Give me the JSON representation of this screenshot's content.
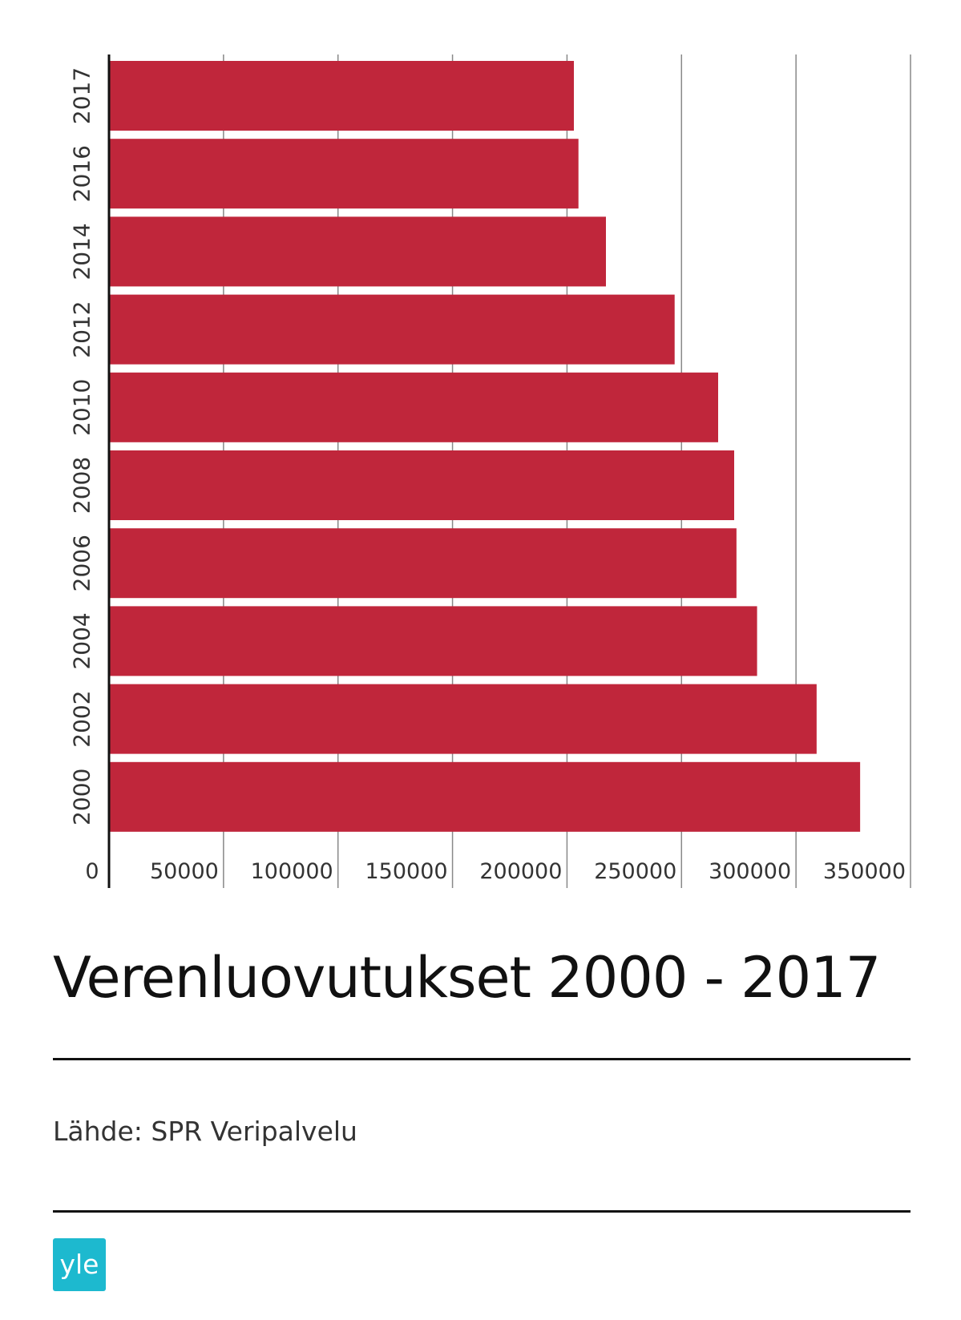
{
  "chart_data": {
    "type": "bar",
    "orientation": "horizontal",
    "title": "Verenluovutukset 2000 - 2017",
    "categories": [
      "2017",
      "2016",
      "2014",
      "2012",
      "2010",
      "2008",
      "2006",
      "2004",
      "2002",
      "2000"
    ],
    "values": [
      203000,
      205000,
      217000,
      247000,
      266000,
      273000,
      274000,
      283000,
      309000,
      328000
    ],
    "xlim": [
      0,
      350000
    ],
    "x_ticks": [
      "0",
      "50000",
      "100000",
      "150000",
      "200000",
      "250000",
      "300000",
      "350000"
    ],
    "x_tick_values": [
      0,
      50000,
      100000,
      150000,
      200000,
      250000,
      300000,
      350000
    ],
    "grid": true,
    "bar_color": "#c0263b"
  },
  "source": "Lähde: SPR Veripalvelu",
  "logo": {
    "text": "yle",
    "color": "#1db9cf"
  }
}
